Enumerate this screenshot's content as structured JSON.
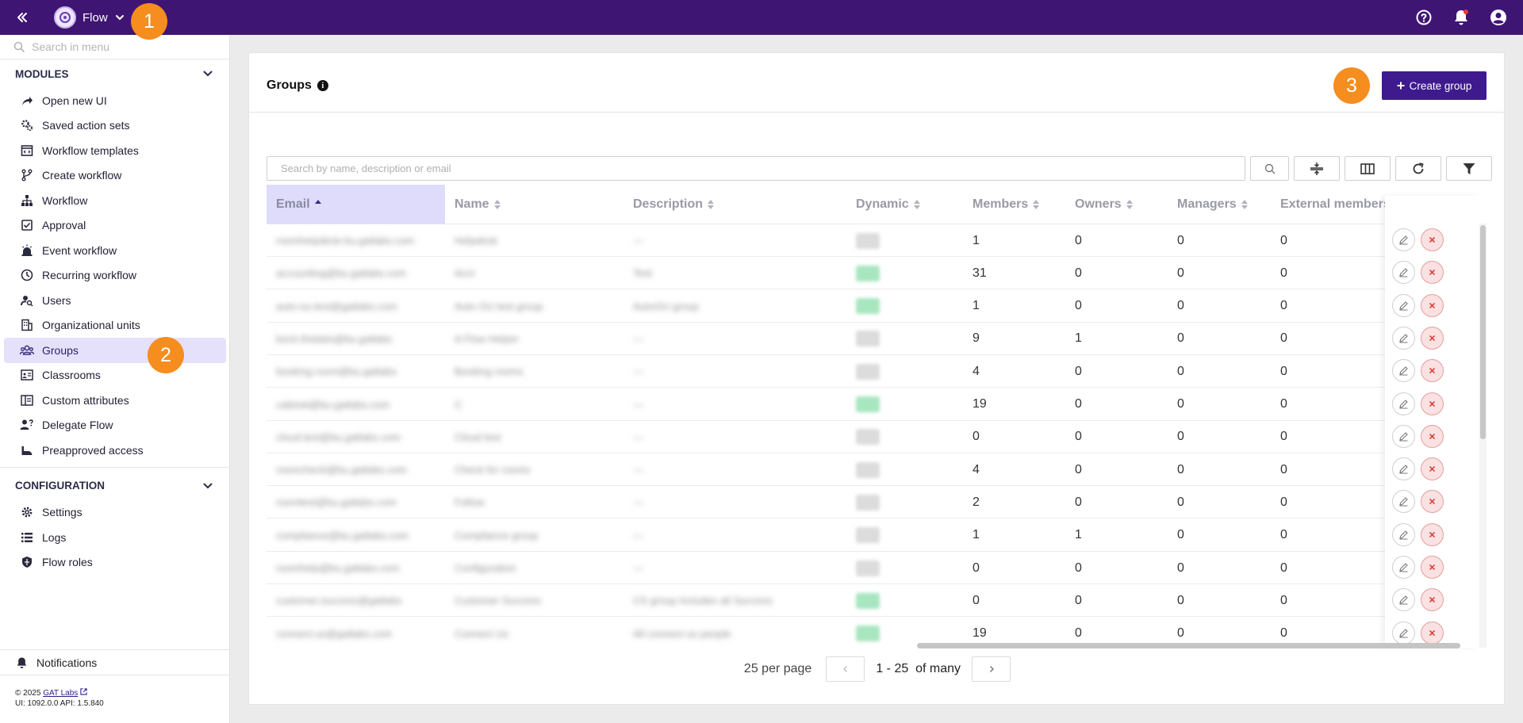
{
  "topbar": {
    "app_name": "Flow",
    "icons": [
      "collapse-icon",
      "help-icon",
      "bell-icon",
      "account-icon"
    ]
  },
  "steps": [
    "1",
    "2",
    "3"
  ],
  "sidebar": {
    "search_placeholder": "Search in menu",
    "modules_title": "MODULES",
    "modules": [
      {
        "label": "Open new UI",
        "icon": "share-arrow-icon"
      },
      {
        "label": "Saved action sets",
        "icon": "gears-icon"
      },
      {
        "label": "Workflow templates",
        "icon": "template-icon"
      },
      {
        "label": "Create workflow",
        "icon": "branch-icon"
      },
      {
        "label": "Workflow",
        "icon": "hierarchy-icon"
      },
      {
        "label": "Approval",
        "icon": "approval-icon"
      },
      {
        "label": "Event workflow",
        "icon": "alarm-icon"
      },
      {
        "label": "Recurring workflow",
        "icon": "clock-icon"
      },
      {
        "label": "Users",
        "icon": "user-search-icon"
      },
      {
        "label": "Organizational units",
        "icon": "building-icon"
      },
      {
        "label": "Groups",
        "icon": "groups-icon"
      },
      {
        "label": "Classrooms",
        "icon": "classroom-icon"
      },
      {
        "label": "Custom attributes",
        "icon": "attributes-icon"
      },
      {
        "label": "Delegate Flow",
        "icon": "delegate-icon"
      },
      {
        "label": "Preapproved access",
        "icon": "access-icon"
      }
    ],
    "config_title": "CONFIGURATION",
    "config": [
      {
        "label": "Settings",
        "icon": "gear-icon"
      },
      {
        "label": "Logs",
        "icon": "list-icon"
      },
      {
        "label": "Flow roles",
        "icon": "shield-icon"
      }
    ],
    "notifications_label": "Notifications",
    "footer_copyright": "© 2025",
    "footer_link": "GAT Labs",
    "footer_version": "UI: 1092.0.0 API: 1.5.840"
  },
  "header": {
    "title": "Groups",
    "create_label": "Create group"
  },
  "table": {
    "search_placeholder": "Search by name, description or email",
    "columns": [
      "Email",
      "Name",
      "Description",
      "Dynamic",
      "Members",
      "Owners",
      "Managers",
      "External members"
    ],
    "rows": [
      {
        "email": "roomhelpdesk-bu.gatlabs.com",
        "name": "Helpdesk",
        "desc": "—",
        "dynamic": false,
        "members": "1",
        "owners": "0",
        "managers": "0",
        "external": "0"
      },
      {
        "email": "accounting@bu.gatlabs.com",
        "name": "Acct",
        "desc": "Test",
        "dynamic": true,
        "members": "31",
        "owners": "0",
        "managers": "0",
        "external": "0"
      },
      {
        "email": "auto-ou-test@gatlabs.com",
        "name": "Auto OU test group",
        "desc": "AutoOU group",
        "dynamic": true,
        "members": "1",
        "owners": "0",
        "managers": "0",
        "external": "0"
      },
      {
        "email": "bock.thelabs@bu.gatlabs",
        "name": "A Flow Helper",
        "desc": "—",
        "dynamic": false,
        "members": "9",
        "owners": "1",
        "managers": "0",
        "external": "0"
      },
      {
        "email": "booking.room@bu.gatlabs",
        "name": "Booking rooms",
        "desc": "—",
        "dynamic": false,
        "members": "4",
        "owners": "0",
        "managers": "0",
        "external": "0"
      },
      {
        "email": "cabinet@bu.gatlabs.com",
        "name": "C",
        "desc": "—",
        "dynamic": true,
        "members": "19",
        "owners": "0",
        "managers": "0",
        "external": "0"
      },
      {
        "email": "cloud.test@bu.gatlabs.com",
        "name": "Cloud test",
        "desc": "—",
        "dynamic": false,
        "members": "0",
        "owners": "0",
        "managers": "0",
        "external": "0"
      },
      {
        "email": "roomcheck@bu.gatlabs.com",
        "name": "Check for rooms",
        "desc": "—",
        "dynamic": false,
        "members": "4",
        "owners": "0",
        "managers": "0",
        "external": "0"
      },
      {
        "email": "roomtest@bu.gatlabs.com",
        "name": "Follow",
        "desc": "—",
        "dynamic": false,
        "members": "2",
        "owners": "0",
        "managers": "0",
        "external": "0"
      },
      {
        "email": "compliance@bu.gatlabs.com",
        "name": "Compliance group",
        "desc": "—",
        "dynamic": false,
        "members": "1",
        "owners": "1",
        "managers": "0",
        "external": "0"
      },
      {
        "email": "roomhelp@bu.gatlabs.com",
        "name": "Configuration",
        "desc": "—",
        "dynamic": false,
        "members": "0",
        "owners": "0",
        "managers": "0",
        "external": "0"
      },
      {
        "email": "customer.success@gatlabs",
        "name": "Customer Success",
        "desc": "CS group includes all Success",
        "dynamic": true,
        "members": "0",
        "owners": "0",
        "managers": "0",
        "external": "0"
      },
      {
        "email": "connect.us@gatlabs.com",
        "name": "Connect Us",
        "desc": "All connect us people",
        "dynamic": true,
        "members": "19",
        "owners": "0",
        "managers": "0",
        "external": "0"
      }
    ]
  },
  "pagination": {
    "per_page": "25 per page",
    "range": "1 - 25",
    "of": "of many"
  },
  "colors": {
    "topbar": "#3f1574",
    "accent": "#3f1a8f",
    "step_badge": "#f58d1f",
    "active_item": "#e5e1fb"
  }
}
